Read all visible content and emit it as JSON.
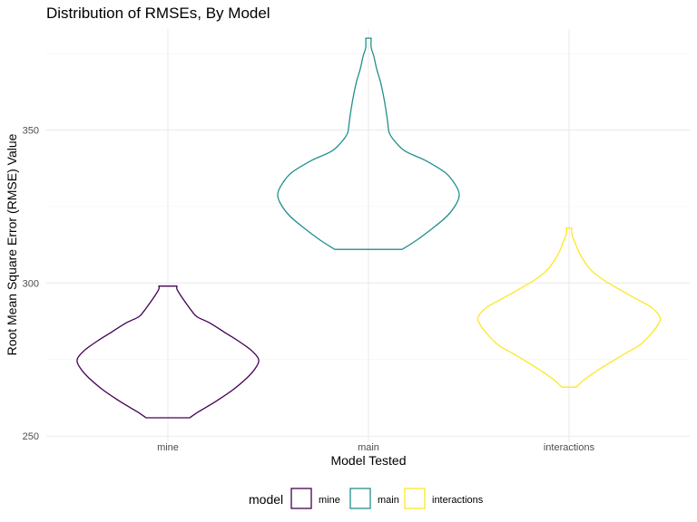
{
  "chart_data": {
    "type": "violin",
    "title": "Distribution of RMSEs, By Model",
    "xlabel": "Model Tested",
    "ylabel": "Root Mean Square Error (RMSE) Value",
    "categories": [
      "mine",
      "main",
      "interactions"
    ],
    "ylim": [
      248,
      383
    ],
    "y_ticks": [
      250,
      300,
      350
    ],
    "grid": true,
    "legend": {
      "title": "model",
      "position": "bottom"
    },
    "series": [
      {
        "name": "mine",
        "color": "#440154",
        "min": 256,
        "max": 299,
        "density": [
          [
            256,
            0.24
          ],
          [
            258,
            0.34
          ],
          [
            261,
            0.51
          ],
          [
            265,
            0.71
          ],
          [
            269,
            0.87
          ],
          [
            272,
            0.96
          ],
          [
            275,
            1.0
          ],
          [
            278,
            0.92
          ],
          [
            281,
            0.78
          ],
          [
            284,
            0.62
          ],
          [
            287,
            0.46
          ],
          [
            289,
            0.32
          ],
          [
            291,
            0.26
          ],
          [
            293,
            0.21
          ],
          [
            296,
            0.14
          ],
          [
            298,
            0.1
          ],
          [
            299,
            0.1
          ]
        ]
      },
      {
        "name": "main",
        "color": "#21908C",
        "min": 311,
        "max": 380,
        "density": [
          [
            311,
            0.37
          ],
          [
            314,
            0.53
          ],
          [
            318,
            0.71
          ],
          [
            322,
            0.87
          ],
          [
            326,
            0.97
          ],
          [
            329,
            1.0
          ],
          [
            332,
            0.96
          ],
          [
            336,
            0.85
          ],
          [
            340,
            0.63
          ],
          [
            343,
            0.41
          ],
          [
            346,
            0.3
          ],
          [
            349,
            0.23
          ],
          [
            353,
            0.21
          ],
          [
            357,
            0.19
          ],
          [
            362,
            0.16
          ],
          [
            366,
            0.13
          ],
          [
            370,
            0.09
          ],
          [
            374,
            0.06
          ],
          [
            377,
            0.03
          ],
          [
            380,
            0.03
          ]
        ]
      },
      {
        "name": "interactions",
        "color": "#FDE725",
        "min": 266,
        "max": 318,
        "density": [
          [
            266,
            0.08
          ],
          [
            268,
            0.15
          ],
          [
            271,
            0.29
          ],
          [
            274,
            0.45
          ],
          [
            277,
            0.62
          ],
          [
            280,
            0.79
          ],
          [
            284,
            0.92
          ],
          [
            287,
            0.99
          ],
          [
            289,
            1.0
          ],
          [
            292,
            0.91
          ],
          [
            295,
            0.73
          ],
          [
            298,
            0.55
          ],
          [
            301,
            0.38
          ],
          [
            304,
            0.25
          ],
          [
            307,
            0.17
          ],
          [
            310,
            0.11
          ],
          [
            313,
            0.07
          ],
          [
            316,
            0.03
          ],
          [
            318,
            0.03
          ]
        ]
      }
    ]
  }
}
